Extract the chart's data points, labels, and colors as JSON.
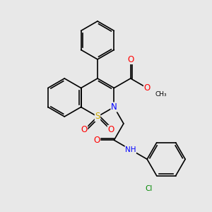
{
  "bg_color": "#e8e8e8",
  "atom_colors": {
    "N": "#0000ff",
    "O": "#ff0000",
    "S": "#ccaa00",
    "Cl": "#008800",
    "C": "#000000",
    "H": "#000000"
  },
  "bond_color": "#000000",
  "font_size": 7.5,
  "line_width": 1.2
}
